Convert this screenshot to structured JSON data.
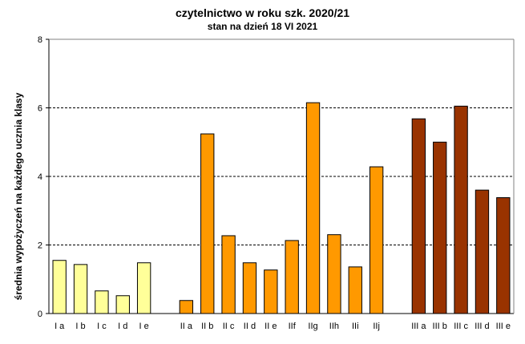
{
  "chart_data": {
    "type": "bar",
    "title": "czytelnictwo w roku szk. 2020/21",
    "subtitle": "stan na dzień 18 VI 2021",
    "xlabel": "",
    "ylabel": "średnia wypożyczeń na każdego ucznia klasy",
    "ylim": [
      0,
      8
    ],
    "yticks": [
      0,
      2,
      4,
      6,
      8
    ],
    "grid": "horizontal dashed at 2, 4, 6",
    "legend": "none",
    "groups": [
      {
        "color": "#ffff99",
        "categories": [
          "I a",
          "I b",
          "I c",
          "I d",
          "I e"
        ],
        "values": [
          1.55,
          1.43,
          0.66,
          0.52,
          1.48
        ]
      },
      {
        "color": "#ff9900",
        "categories": [
          "II a",
          "II b",
          "II c",
          "II d",
          "II e",
          "IIf",
          "IIg",
          "IIh",
          "IIi",
          "IIj"
        ],
        "values": [
          0.38,
          5.24,
          2.27,
          1.48,
          1.27,
          2.13,
          6.15,
          2.3,
          1.36,
          4.28
        ]
      },
      {
        "color": "#993300",
        "categories": [
          "III a",
          "III b",
          "III c",
          "III d",
          "III e"
        ],
        "values": [
          5.68,
          5.0,
          6.05,
          3.6,
          3.38
        ]
      }
    ]
  }
}
